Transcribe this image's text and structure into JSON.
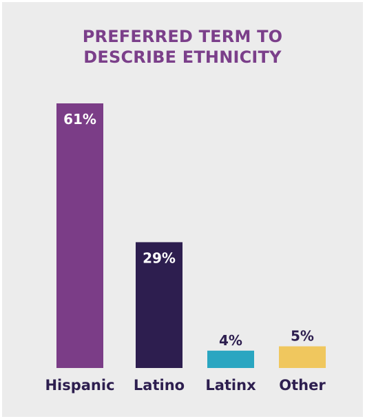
{
  "chart_data": {
    "type": "bar",
    "title_lines": [
      "PREFERRED TERM TO",
      "DESCRIBE ETHNICITY"
    ],
    "categories": [
      "Hispanic",
      "Latino",
      "Latinx",
      "Other"
    ],
    "values": [
      61,
      29,
      4,
      5
    ],
    "data_labels": [
      "61%",
      "29%",
      "4%",
      "5%"
    ],
    "colors": [
      "#7b3d87",
      "#2d1e4f",
      "#2aa6c1",
      "#f0c75e"
    ],
    "label_colors": [
      "#ffffff",
      "#ffffff",
      "#2d1e4f",
      "#2d1e4f"
    ],
    "category_label_color": "#2d1e4f",
    "title_color": "#7b3f8a",
    "background_color": "#ececec",
    "ylim": [
      0,
      61
    ],
    "grid": false,
    "legend": "none"
  }
}
